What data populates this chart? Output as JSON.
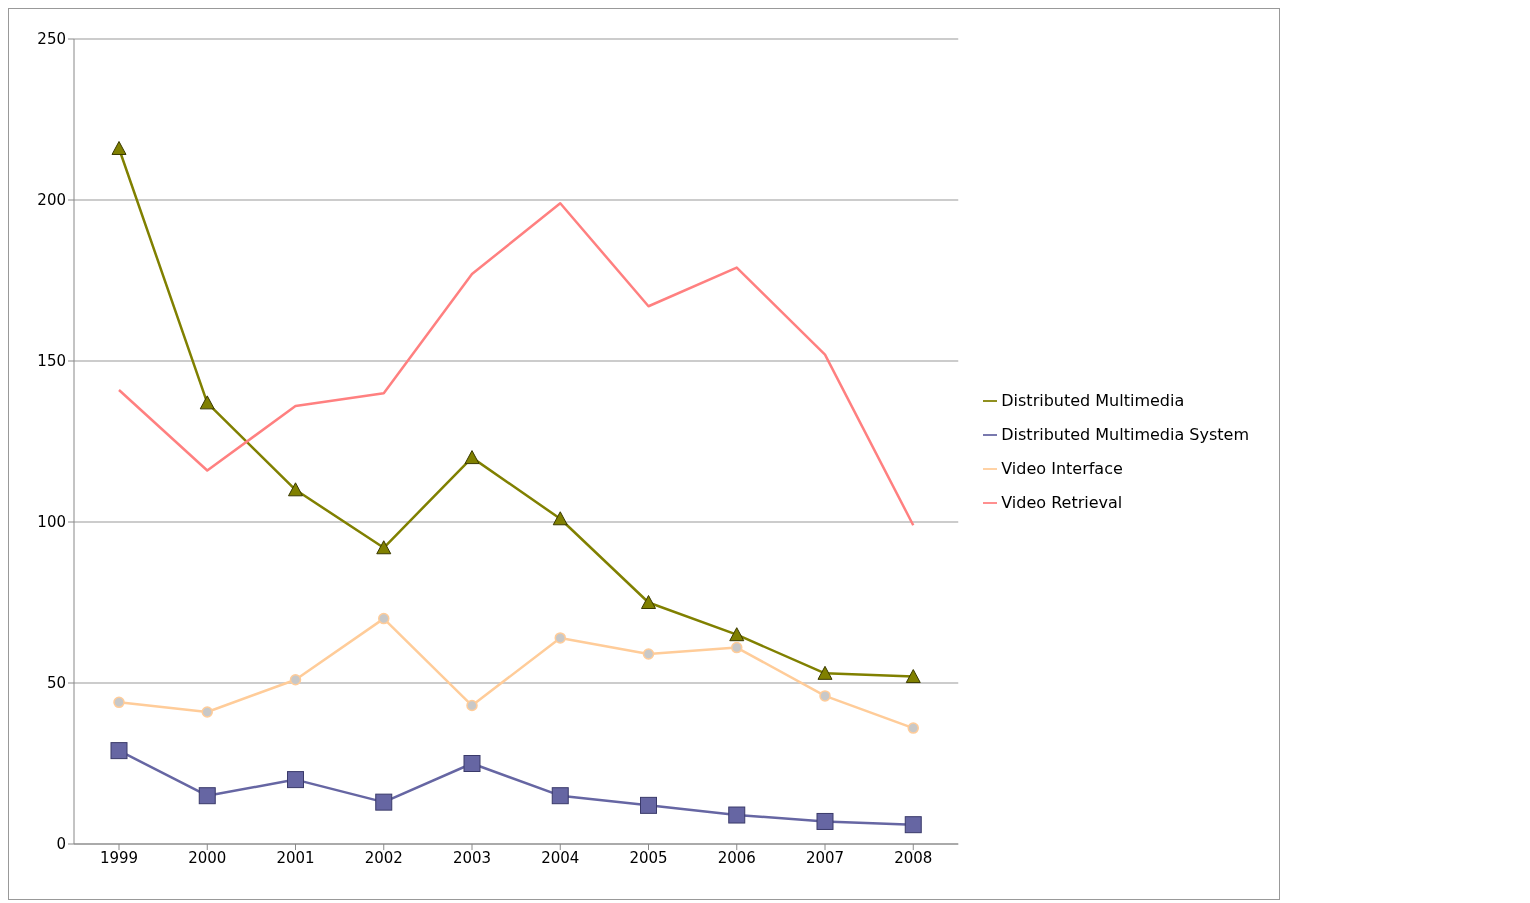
{
  "chart_data": {
    "type": "line",
    "categories": [
      "1999",
      "2000",
      "2001",
      "2002",
      "2003",
      "2004",
      "2005",
      "2006",
      "2007",
      "2008"
    ],
    "series": [
      {
        "name": "Distributed Multimedia",
        "color": "#808000",
        "marker": "triangle",
        "values": [
          216,
          137,
          110,
          92,
          120,
          101,
          75,
          65,
          53,
          52
        ]
      },
      {
        "name": "Distributed Multimedia System",
        "color": "#6666a3",
        "marker": "square",
        "values": [
          29,
          15,
          20,
          13,
          25,
          15,
          12,
          9,
          7,
          6
        ]
      },
      {
        "name": "Video Interface",
        "color": "#ffcc99",
        "marker": "circle",
        "values": [
          44,
          41,
          51,
          70,
          43,
          64,
          59,
          61,
          46,
          36
        ]
      },
      {
        "name": "Video Retrieval",
        "color": "#ff8080",
        "marker": "none",
        "values": [
          141,
          116,
          136,
          140,
          177,
          199,
          167,
          179,
          152,
          99
        ]
      }
    ],
    "ylim": [
      0,
      250
    ],
    "yticks": [
      0,
      50,
      100,
      150,
      200,
      250
    ],
    "grid": "y",
    "legend": "right",
    "line_style": "solid"
  }
}
